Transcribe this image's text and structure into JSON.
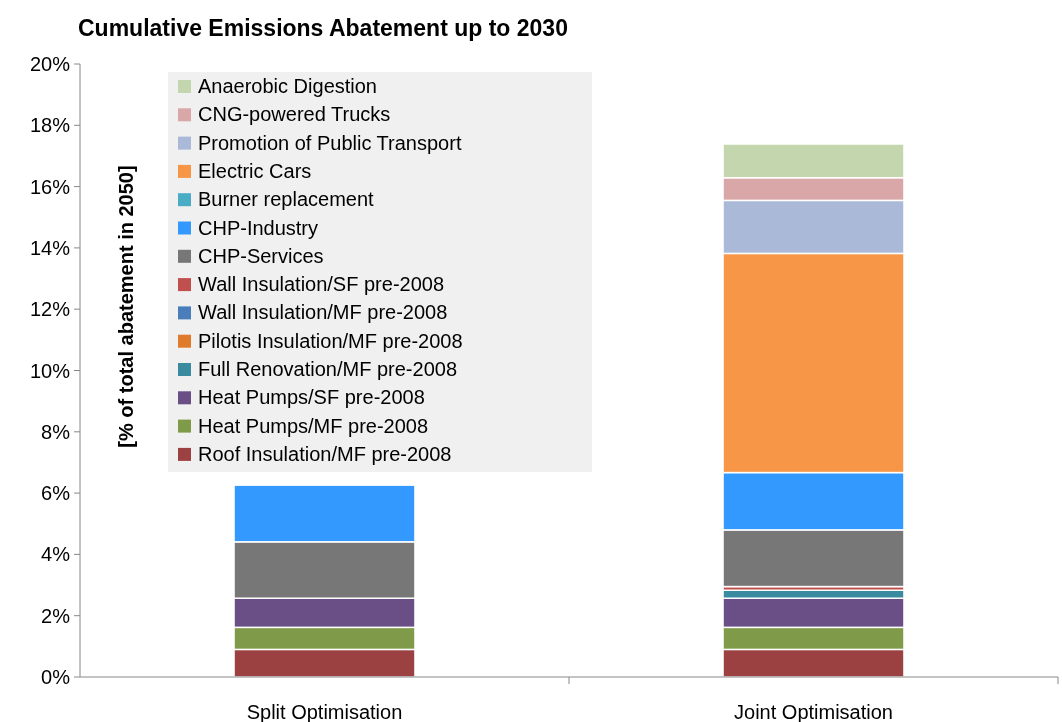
{
  "chart_data": {
    "type": "bar",
    "title": "Cumulative Emissions Abatement up to 2030",
    "ylabel": "[% of total abatement in 2050]",
    "categories": [
      "Split Optimisation",
      "Joint Optimisation"
    ],
    "stacked": true,
    "legend": "top left",
    "grid": false,
    "ylim": [
      0,
      20
    ],
    "yticks": [
      {
        "value": 0,
        "label": "0%"
      },
      {
        "value": 2,
        "label": "2%"
      },
      {
        "value": 4,
        "label": "4%"
      },
      {
        "value": 6,
        "label": "6%"
      },
      {
        "value": 8,
        "label": "8%"
      },
      {
        "value": 10,
        "label": "10%"
      },
      {
        "value": 12,
        "label": "12%"
      },
      {
        "value": 14,
        "label": "14%"
      },
      {
        "value": 16,
        "label": "16%"
      },
      {
        "value": 18,
        "label": "18%"
      },
      {
        "value": 20,
        "label": "20%"
      }
    ],
    "series": [
      {
        "name": "Roof Insulation/MF pre-2008",
        "color": "#9c4141",
        "values": [
          0.9,
          0.9
        ]
      },
      {
        "name": "Heat Pumps/MF pre-2008",
        "color": "#7f9a48",
        "values": [
          0.72,
          0.72
        ]
      },
      {
        "name": "Heat Pumps/SF pre-2008",
        "color": "#6a4f87",
        "values": [
          0.95,
          0.95
        ]
      },
      {
        "name": "Full Renovation/MF pre-2008",
        "color": "#3a8aa0",
        "values": [
          null,
          0.26
        ]
      },
      {
        "name": "Pilotis Insulation/MF pre-2008",
        "color": "#e07b2e",
        "values": [
          null,
          null
        ]
      },
      {
        "name": "Wall Insulation/MF pre-2008",
        "color": "#4a7ebb",
        "values": [
          null,
          null
        ]
      },
      {
        "name": "Wall Insulation/SF pre-2008",
        "color": "#c0504d",
        "values": [
          null,
          0.12
        ]
      },
      {
        "name": "CHP-Services",
        "color": "#777777",
        "values": [
          1.84,
          1.85
        ]
      },
      {
        "name": "CHP-Industry",
        "color": "#3399ff",
        "values": [
          1.85,
          1.87
        ]
      },
      {
        "name": "Burner replacement",
        "color": "#4bacc6",
        "values": [
          null,
          null
        ]
      },
      {
        "name": "Electric Cars",
        "color": "#f79646",
        "values": [
          null,
          7.15
        ]
      },
      {
        "name": "Promotion of Public Transport",
        "color": "#aab9d7",
        "values": [
          null,
          1.73
        ]
      },
      {
        "name": "CNG-powered Trucks",
        "color": "#d9a7a7",
        "values": [
          null,
          0.74
        ]
      },
      {
        "name": "Anaerobic Digestion",
        "color": "#c4d6ad",
        "values": [
          null,
          1.1
        ]
      }
    ]
  }
}
